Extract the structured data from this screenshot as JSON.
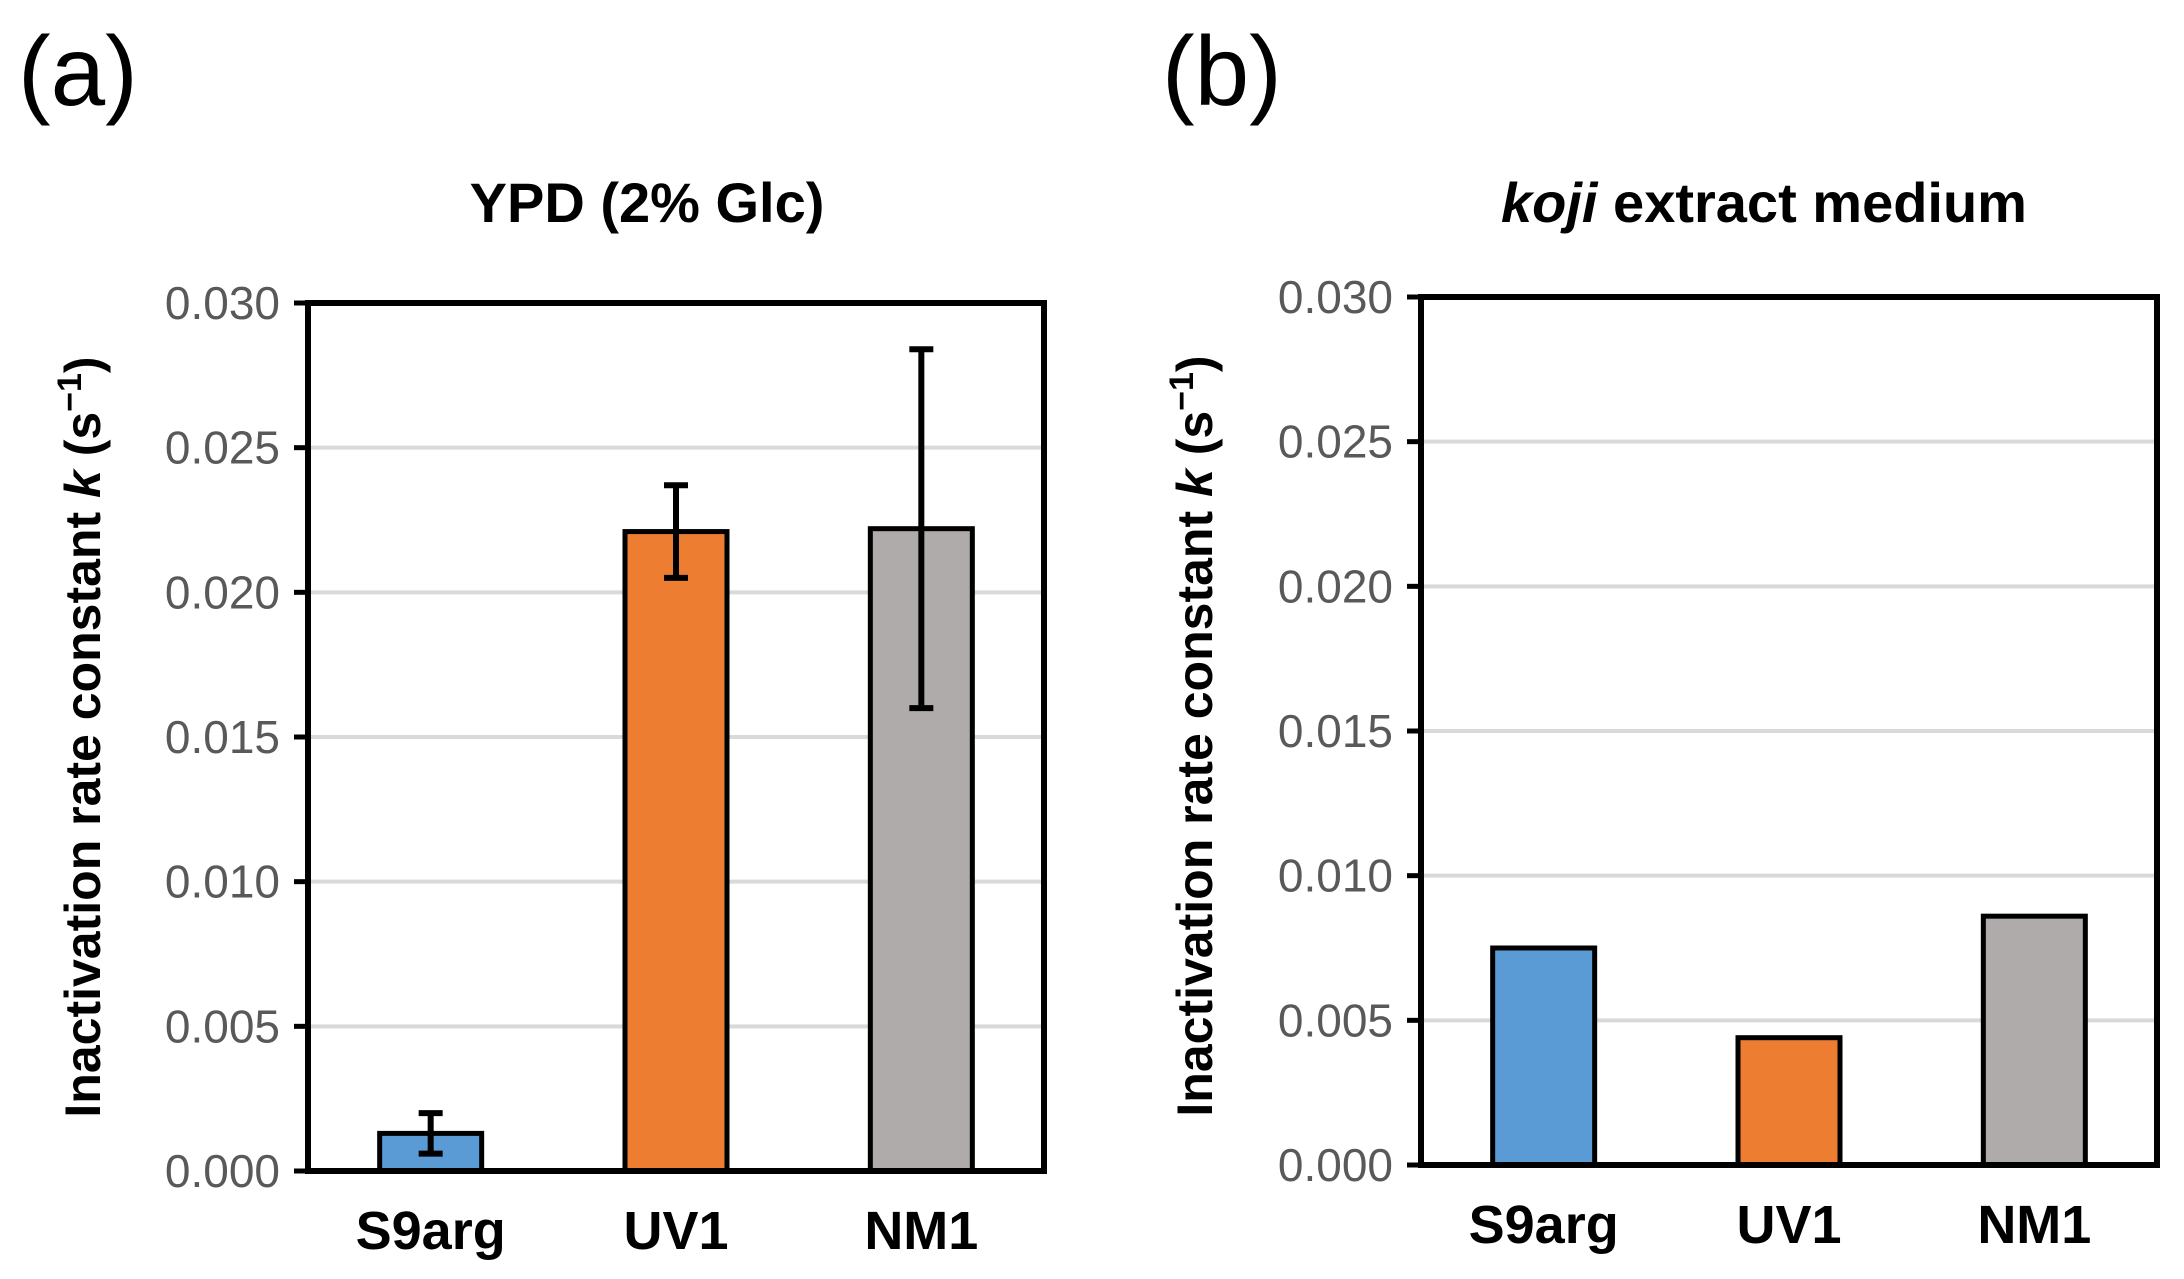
{
  "panels": [
    {
      "label": "(a)"
    },
    {
      "label": "(b)"
    }
  ],
  "chart_data": [
    {
      "type": "bar",
      "title": "YPD (2% Glc)",
      "title_parts": [
        {
          "text": "YPD (2% Glc)",
          "italic": false
        }
      ],
      "categories": [
        "S9arg",
        "UV1",
        "NM1"
      ],
      "values": [
        0.0013,
        0.0221,
        0.0222
      ],
      "errors": [
        0.0007,
        0.0016,
        0.0062
      ],
      "colors": [
        "#5b9bd5",
        "#ed7d31",
        "#afabab"
      ],
      "ylabel": "Inactivation rate constant k (s−1)",
      "ylabel_parts": [
        {
          "text": "Inactivation rate constant ",
          "italic": false
        },
        {
          "text": "k",
          "italic": true
        },
        {
          "text": " (s",
          "italic": false
        },
        {
          "text": "−1",
          "sup": true
        },
        {
          "text": ")",
          "italic": false
        }
      ],
      "ylim": [
        0,
        0.03
      ],
      "yticks": [
        "0.000",
        "0.005",
        "0.010",
        "0.015",
        "0.020",
        "0.025",
        "0.030"
      ],
      "grid": true
    },
    {
      "type": "bar",
      "title": "koji extract medium",
      "title_parts": [
        {
          "text": "koji",
          "italic": true
        },
        {
          "text": " extract medium",
          "italic": false
        }
      ],
      "categories": [
        "S9arg",
        "UV1",
        "NM1"
      ],
      "values": [
        0.0075,
        0.0044,
        0.0086
      ],
      "errors": [
        null,
        null,
        null
      ],
      "colors": [
        "#5b9bd5",
        "#ed7d31",
        "#afabab"
      ],
      "ylabel": "Inactivation rate constant k (s−1)",
      "ylabel_parts": [
        {
          "text": "Inactivation rate constant ",
          "italic": false
        },
        {
          "text": "k",
          "italic": true
        },
        {
          "text": " (s",
          "italic": false
        },
        {
          "text": "−1",
          "sup": true
        },
        {
          "text": ")",
          "italic": false
        }
      ],
      "ylim": [
        0,
        0.03
      ],
      "yticks": [
        "0.000",
        "0.005",
        "0.010",
        "0.015",
        "0.020",
        "0.025",
        "0.030"
      ],
      "grid": true
    }
  ]
}
